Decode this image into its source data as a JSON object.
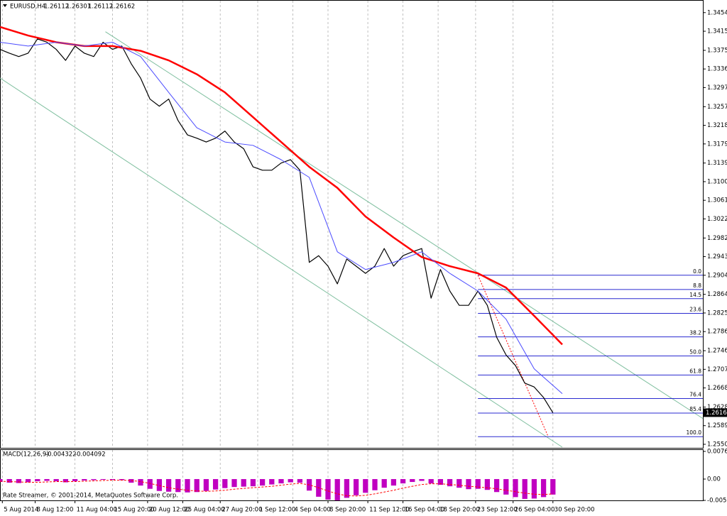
{
  "chart_data": {
    "type": "line",
    "title": "EURUSD,H4",
    "ohlc": [
      1.26112,
      1.26301,
      1.26112,
      1.26162
    ],
    "footer": "Rate Streamer, © 2001-2014, MetaQuotes Software Corp.",
    "grid": true,
    "xlim": [
      0,
      300
    ],
    "xticks": [
      {
        "value": 1,
        "label": "5 Aug 2014"
      },
      {
        "value": 15,
        "label": "8 Aug 12:00"
      },
      {
        "value": 32,
        "label": "11 Aug 04:00"
      },
      {
        "value": 48,
        "label": "15 Aug 20:00"
      },
      {
        "value": 63,
        "label": "20 Aug 12:00"
      },
      {
        "value": 78,
        "label": "25 Aug 04:00"
      },
      {
        "value": 94,
        "label": "27 Aug 20:00"
      },
      {
        "value": 110,
        "label": "1 Sep 12:00"
      },
      {
        "value": 125,
        "label": "4 Sep 04:00"
      },
      {
        "value": 140,
        "label": "8 Sep 20:00"
      },
      {
        "value": 157,
        "label": "11 Sep 12:00"
      },
      {
        "value": 172,
        "label": "16 Sep 04:00"
      },
      {
        "value": 187,
        "label": "18 Sep 20:00"
      },
      {
        "value": 203,
        "label": "23 Sep 12:00"
      },
      {
        "value": 219,
        "label": "26 Sep 04:00"
      },
      {
        "value": 236,
        "label": "30 Sep 20:00"
      }
    ],
    "ylim": [
      1.2544,
      1.3473
    ],
    "yticks": [
      {
        "value": 1.3454,
        "label": "1.34540"
      },
      {
        "value": 1.3415,
        "label": "1.34150"
      },
      {
        "value": 1.3375,
        "label": "1.33750"
      },
      {
        "value": 1.3336,
        "label": "1.33360"
      },
      {
        "value": 1.3297,
        "label": "1.32970"
      },
      {
        "value": 1.3257,
        "label": "1.32570"
      },
      {
        "value": 1.3218,
        "label": "1.32180"
      },
      {
        "value": 1.3179,
        "label": "1.31790"
      },
      {
        "value": 1.3139,
        "label": "1.31390"
      },
      {
        "value": 1.31,
        "label": "1.31000"
      },
      {
        "value": 1.3061,
        "label": "1.30610"
      },
      {
        "value": 1.3022,
        "label": "1.30220"
      },
      {
        "value": 1.2982,
        "label": "1.29820"
      },
      {
        "value": 1.2943,
        "label": "1.29430"
      },
      {
        "value": 1.2904,
        "label": "1.29040"
      },
      {
        "value": 1.2864,
        "label": "1.28640"
      },
      {
        "value": 1.2825,
        "label": "1.28250"
      },
      {
        "value": 1.2786,
        "label": "1.27860"
      },
      {
        "value": 1.2746,
        "label": "1.27460"
      },
      {
        "value": 1.2707,
        "label": "1.27070"
      },
      {
        "value": 1.2668,
        "label": "1.26680"
      },
      {
        "value": 1.2628,
        "label": "1.26280"
      },
      {
        "value": 1.2589,
        "label": "1.25890"
      },
      {
        "value": 1.255,
        "label": "1.25500"
      }
    ],
    "x": [
      0,
      4,
      8,
      12,
      16,
      20,
      24,
      28,
      32,
      36,
      40,
      44,
      48,
      52,
      56,
      60,
      64,
      68,
      72,
      76,
      80,
      84,
      88,
      92,
      96,
      100,
      104,
      108,
      112,
      116,
      120,
      124,
      128,
      132,
      136,
      140,
      144,
      148,
      152,
      156,
      160,
      164,
      168,
      172,
      176,
      180,
      184,
      188,
      192,
      196,
      200,
      204,
      208,
      212,
      216,
      220,
      224,
      228,
      232,
      236
    ],
    "series": [
      {
        "color": "#000000",
        "values": [
          1.3377,
          1.3369,
          1.3362,
          1.3369,
          1.3399,
          1.3392,
          1.3377,
          1.3354,
          1.3384,
          1.3369,
          1.3362,
          1.3392,
          1.3377,
          1.3384,
          1.3347,
          1.3317,
          1.3273,
          1.3258,
          1.3273,
          1.3228,
          1.3198,
          1.3191,
          1.3183,
          1.3191,
          1.3206,
          1.3183,
          1.3169,
          1.3131,
          1.3124,
          1.3124,
          1.3139,
          1.3146,
          1.3124,
          1.2931,
          1.2945,
          1.2923,
          1.2886,
          1.2938,
          1.2923,
          1.2908,
          1.2923,
          1.296,
          1.2923,
          1.2945,
          1.2953,
          1.296,
          1.2856,
          1.2916,
          1.2871,
          1.2841,
          1.2841,
          1.2871,
          1.2841,
          1.2774,
          1.2737,
          1.2715,
          1.2678,
          1.267,
          1.2648,
          1.2616
        ]
      },
      {
        "color": "#ff0000",
        "width": 2.5,
        "x": [
          0,
          12,
          24,
          36,
          48,
          60,
          72,
          84,
          96,
          108,
          120,
          132,
          144,
          156,
          168,
          180,
          192,
          204,
          216,
          228,
          240
        ],
        "values": [
          1.3424,
          1.3406,
          1.3392,
          1.3384,
          1.3384,
          1.3374,
          1.3354,
          1.3325,
          1.3287,
          1.3235,
          1.3183,
          1.3131,
          1.3087,
          1.3027,
          1.2983,
          1.2942,
          1.2923,
          1.2908,
          1.2878,
          1.2819,
          1.2759
        ]
      },
      {
        "color": "#4b4bff",
        "width": 1,
        "x": [
          0,
          12,
          24,
          36,
          48,
          60,
          72,
          84,
          96,
          108,
          120,
          132,
          144,
          156,
          168,
          180,
          192,
          204,
          216,
          228,
          240
        ],
        "values": [
          1.3392,
          1.3384,
          1.3392,
          1.3384,
          1.3392,
          1.3362,
          1.3287,
          1.3213,
          1.3183,
          1.3176,
          1.3146,
          1.3109,
          1.2953,
          1.2916,
          1.2931,
          1.2953,
          1.2908,
          1.2871,
          1.2812,
          1.2708,
          1.2656
        ]
      }
    ],
    "trendlines": [
      {
        "color": "#7fbf9f",
        "x": [
          45,
          300
        ],
        "y": [
          1.3414,
          1.2604
        ]
      },
      {
        "color": "#7fbf9f",
        "x": [
          0,
          240
        ],
        "y": [
          1.3317,
          1.2544
        ]
      }
    ],
    "fibo": {
      "color": "#2a2ad0",
      "high": 1.2904,
      "low": 1.2566,
      "x": [
        204,
        234
      ],
      "levels": [
        {
          "value": 0,
          "label": "0.0"
        },
        8.8,
        14.5,
        23.6,
        38.2,
        {
          "value": 50,
          "label": "50.0"
        },
        61.8,
        76.4,
        85.4,
        {
          "value": 100,
          "label": "100.0"
        }
      ]
    },
    "indicator": {
      "type": "bar",
      "title": "MACD(12,26,9)",
      "readout": [
        -0.004322,
        -0.004092
      ],
      "ylim": [
        -0.00591,
        0.00767
      ],
      "yticks": [
        0.00767,
        {
          "value": 0,
          "label": "0.00"
        },
        -0.00591
      ],
      "histogram": {
        "color": "#c000c0",
        "values": [
          -0.0008,
          -0.001,
          -0.0011,
          -0.0009,
          -0.0006,
          -0.0005,
          -0.0006,
          -0.0009,
          -0.0006,
          -0.0004,
          -0.0003,
          -0.0002,
          -0.0002,
          -0.0003,
          -0.001,
          -0.0018,
          -0.0027,
          -0.0033,
          -0.0035,
          -0.0036,
          -0.0037,
          -0.0036,
          -0.0033,
          -0.0029,
          -0.0025,
          -0.0022,
          -0.0021,
          -0.002,
          -0.0018,
          -0.0015,
          -0.0012,
          -0.0009,
          -0.001,
          -0.0032,
          -0.0049,
          -0.0057,
          -0.0059,
          -0.0052,
          -0.0045,
          -0.0038,
          -0.0031,
          -0.0024,
          -0.0018,
          -0.0012,
          -0.0008,
          -0.0005,
          -0.0012,
          -0.0016,
          -0.002,
          -0.0024,
          -0.0028,
          -0.0027,
          -0.003,
          -0.0036,
          -0.0043,
          -0.005,
          -0.0055,
          -0.0054,
          -0.005,
          -0.0043
        ]
      },
      "signal": {
        "color": "#ff0000",
        "values": [
          -0.0006,
          -0.0007,
          -0.0008,
          -0.0009,
          -0.0009,
          -0.0008,
          -0.0007,
          -0.0007,
          -0.0007,
          -0.0006,
          -0.0005,
          -0.0004,
          -0.0003,
          -0.0003,
          -0.0004,
          -0.0007,
          -0.0012,
          -0.0018,
          -0.0024,
          -0.0028,
          -0.0031,
          -0.0033,
          -0.0034,
          -0.0033,
          -0.0031,
          -0.0028,
          -0.0026,
          -0.0024,
          -0.0022,
          -0.002,
          -0.0017,
          -0.0014,
          -0.0012,
          -0.0016,
          -0.0024,
          -0.0033,
          -0.0041,
          -0.0046,
          -0.0047,
          -0.0045,
          -0.0041,
          -0.0036,
          -0.0031,
          -0.0025,
          -0.002,
          -0.0015,
          -0.0013,
          -0.0013,
          -0.0015,
          -0.0017,
          -0.002,
          -0.0022,
          -0.0024,
          -0.0027,
          -0.0031,
          -0.0035,
          -0.0039,
          -0.0042,
          -0.0043,
          -0.0041
        ]
      }
    }
  }
}
